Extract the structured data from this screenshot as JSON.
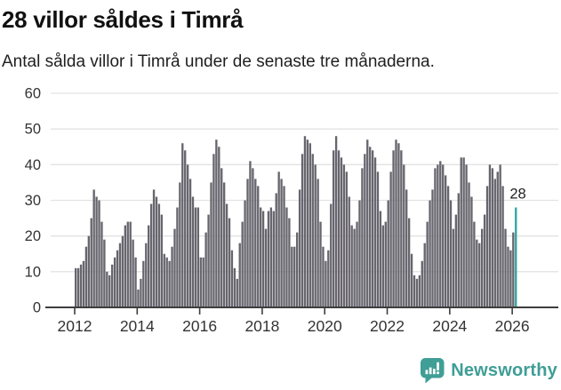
{
  "header": {
    "title": "28 villor såldes i Timrå",
    "subtitle": "Antal sålda villor i Timrå under de senaste tre månaderna."
  },
  "chart_data": {
    "type": "bar",
    "title": "28 villor såldes i Timrå",
    "subtitle": "Antal sålda villor i Timrå under de senaste tre månaderna.",
    "x_start": "2012-01",
    "x_frequency": "monthly",
    "values": [
      11,
      11,
      12,
      13,
      17,
      20,
      25,
      33,
      31,
      30,
      24,
      19,
      10,
      9,
      12,
      14,
      16,
      18,
      20,
      23,
      24,
      24,
      19,
      14,
      5,
      8,
      13,
      18,
      23,
      29,
      33,
      31,
      29,
      26,
      15,
      14,
      13,
      17,
      22,
      28,
      35,
      46,
      44,
      40,
      36,
      31,
      28,
      28,
      14,
      14,
      21,
      26,
      35,
      43,
      47,
      45,
      39,
      35,
      29,
      25,
      16,
      11,
      8,
      18,
      24,
      30,
      36,
      41,
      39,
      36,
      34,
      28,
      27,
      22,
      27,
      28,
      27,
      32,
      38,
      36,
      34,
      28,
      25,
      17,
      17,
      21,
      33,
      43,
      48,
      47,
      46,
      43,
      40,
      36,
      24,
      17,
      13,
      16,
      29,
      44,
      48,
      44,
      42,
      40,
      38,
      31,
      23,
      22,
      24,
      30,
      39,
      43,
      47,
      45,
      44,
      42,
      38,
      27,
      23,
      24,
      30,
      38,
      44,
      47,
      46,
      44,
      40,
      33,
      25,
      15,
      9,
      8,
      9,
      13,
      18,
      24,
      30,
      33,
      39,
      40,
      41,
      40,
      37,
      34,
      30,
      22,
      26,
      32,
      42,
      42,
      40,
      35,
      31,
      24,
      19,
      18,
      22,
      26,
      34,
      40,
      39,
      36,
      38,
      40,
      34,
      22,
      17,
      16,
      21,
      28
    ],
    "last_value": 28,
    "annotation_label": "28",
    "ylim": [
      0,
      60
    ],
    "yticks": [
      0,
      10,
      20,
      30,
      40,
      50,
      60
    ],
    "xticks": [
      "2012",
      "2014",
      "2016",
      "2018",
      "2020",
      "2022",
      "2024",
      "2026"
    ],
    "xtick_start_year": 2012,
    "grid": true,
    "legend": "none",
    "bar_color": "#67656d",
    "highlight_color": "#2ea69f"
  },
  "footer": {
    "brand_label": "Newsworthy"
  },
  "colors": {
    "accent_teal": "#2ea69f",
    "brand_teal": "#3f9e96",
    "bar_gray": "#67656d",
    "grid_line": "#e3e3e3",
    "axis_line": "#3d3d3d",
    "tick_text": "#333333",
    "title_text": "#111111"
  }
}
